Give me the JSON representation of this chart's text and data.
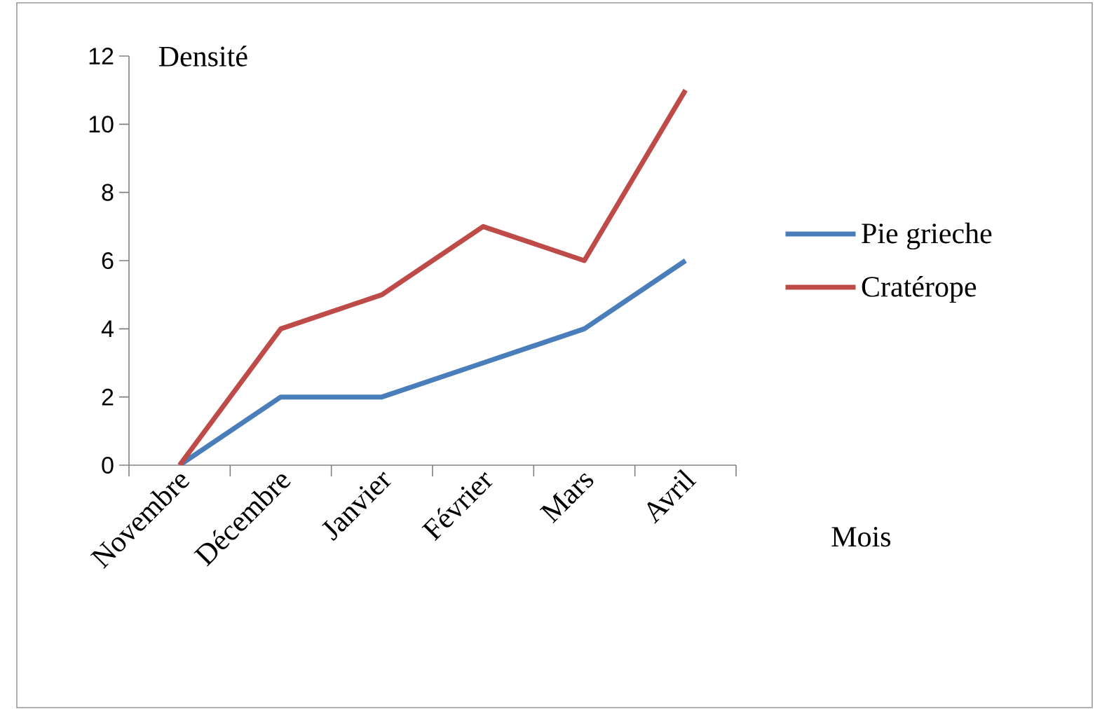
{
  "chart_data": {
    "type": "line",
    "xlabel": "Mois",
    "ylabel": "Densité",
    "categories": [
      "Novembre",
      "Décembre",
      "Janvier",
      "Février",
      "Mars",
      "Avril"
    ],
    "series": [
      {
        "name": "Pie grieche",
        "color": "#4a7ebb",
        "values": [
          0,
          2,
          2,
          3,
          4,
          6
        ]
      },
      {
        "name": "Cratérope",
        "color": "#be4b48",
        "values": [
          0,
          4,
          5,
          7,
          6,
          11
        ]
      }
    ],
    "ylim": [
      0,
      12
    ],
    "yticks": [
      0,
      2,
      4,
      6,
      8,
      10,
      12
    ],
    "legend": "right"
  }
}
